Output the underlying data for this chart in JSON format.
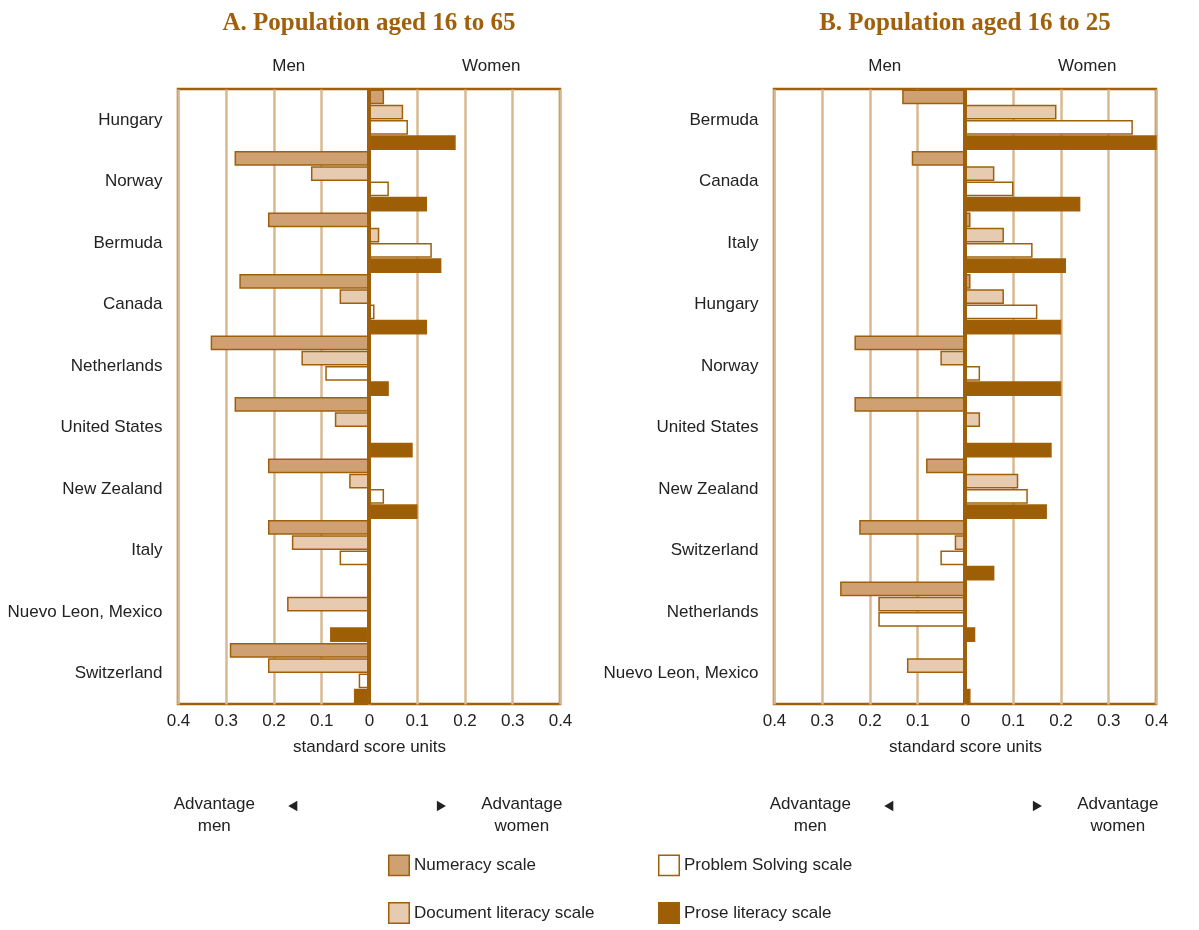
{
  "chart_data": [
    {
      "type": "bar",
      "orientation": "horizontal",
      "title": "A. Population aged 16 to 65",
      "xlabel": "standard score units",
      "categories": [
        "Hungary",
        "Norway",
        "Bermuda",
        "Canada",
        "Netherlands",
        "United States",
        "New Zealand",
        "Italy",
        "Nuevo Leon, Mexico",
        "Switzerland"
      ],
      "series": [
        {
          "name": "Numeracy scale",
          "color": "#cfa072",
          "values": [
            0.03,
            -0.28,
            -0.21,
            -0.27,
            -0.33,
            -0.28,
            -0.21,
            -0.21,
            null,
            -0.29
          ]
        },
        {
          "name": "Document literacy scale",
          "color": "#e6cbb0",
          "values": [
            0.07,
            -0.12,
            0.02,
            -0.06,
            -0.14,
            -0.07,
            -0.04,
            -0.16,
            -0.17,
            -0.21
          ]
        },
        {
          "name": "Problem Solving scale",
          "color": "#ffffff",
          "values": [
            0.08,
            0.04,
            0.13,
            0.01,
            -0.09,
            null,
            0.03,
            -0.06,
            null,
            -0.02
          ]
        },
        {
          "name": "Prose literacy scale",
          "color": "#9e5e05",
          "values": [
            0.18,
            0.12,
            0.15,
            0.12,
            0.04,
            0.09,
            0.1,
            null,
            -0.08,
            -0.03
          ]
        }
      ],
      "xlim": [
        -0.4,
        0.4
      ],
      "xticks": [
        {
          "value": -0.4,
          "label": "0.4"
        },
        {
          "value": -0.3,
          "label": "0.3"
        },
        {
          "value": -0.2,
          "label": "0.2"
        },
        {
          "value": -0.1,
          "label": "0.1"
        },
        0,
        0.1,
        0.2,
        0.3,
        0.4
      ],
      "ref_lines": [
        {
          "axis": "x",
          "value": 0,
          "color": "#a0600a"
        }
      ],
      "grid": "x",
      "legend": "bottom",
      "annotations": [
        "Men",
        "Women",
        "Advantage men",
        "Advantage women"
      ]
    },
    {
      "type": "bar",
      "orientation": "horizontal",
      "title": "B. Population aged 16 to 25",
      "xlabel": "standard score units",
      "categories": [
        "Bermuda",
        "Canada",
        "Italy",
        "Hungary",
        "Norway",
        "United States",
        "New Zealand",
        "Switzerland",
        "Netherlands",
        "Nuevo Leon, Mexico"
      ],
      "series": [
        {
          "color": "#cfa072",
          "values": [
            -0.13,
            -0.11,
            0.01,
            0.01,
            -0.23,
            -0.23,
            -0.08,
            -0.22,
            -0.26,
            null
          ]
        },
        {
          "color": "#e6cbb0",
          "values": [
            0.19,
            0.06,
            0.08,
            0.08,
            -0.05,
            0.03,
            0.11,
            -0.02,
            -0.18,
            -0.12
          ]
        },
        {
          "color": "#ffffff",
          "values": [
            0.35,
            0.1,
            0.14,
            0.15,
            0.03,
            null,
            0.13,
            -0.05,
            -0.18,
            null
          ]
        },
        {
          "color": "#9e5e05",
          "values": [
            0.4,
            0.24,
            0.21,
            0.2,
            0.2,
            0.18,
            0.17,
            0.06,
            0.02,
            0.01
          ]
        }
      ],
      "xlim": [
        -0.4,
        0.4
      ],
      "xticks": [
        {
          "value": -0.4,
          "label": "0.4"
        },
        {
          "value": -0.3,
          "label": "0.3"
        },
        {
          "value": -0.2,
          "label": "0.2"
        },
        {
          "value": -0.1,
          "label": "0.1"
        },
        0,
        0.1,
        0.2,
        0.3,
        0.4
      ],
      "ref_lines": [
        {
          "axis": "x",
          "value": 0,
          "color": "#a0600a"
        }
      ],
      "grid": "x",
      "annotations": [
        "Men",
        "Women",
        "Advantage men",
        "Advantage women"
      ]
    }
  ]
}
